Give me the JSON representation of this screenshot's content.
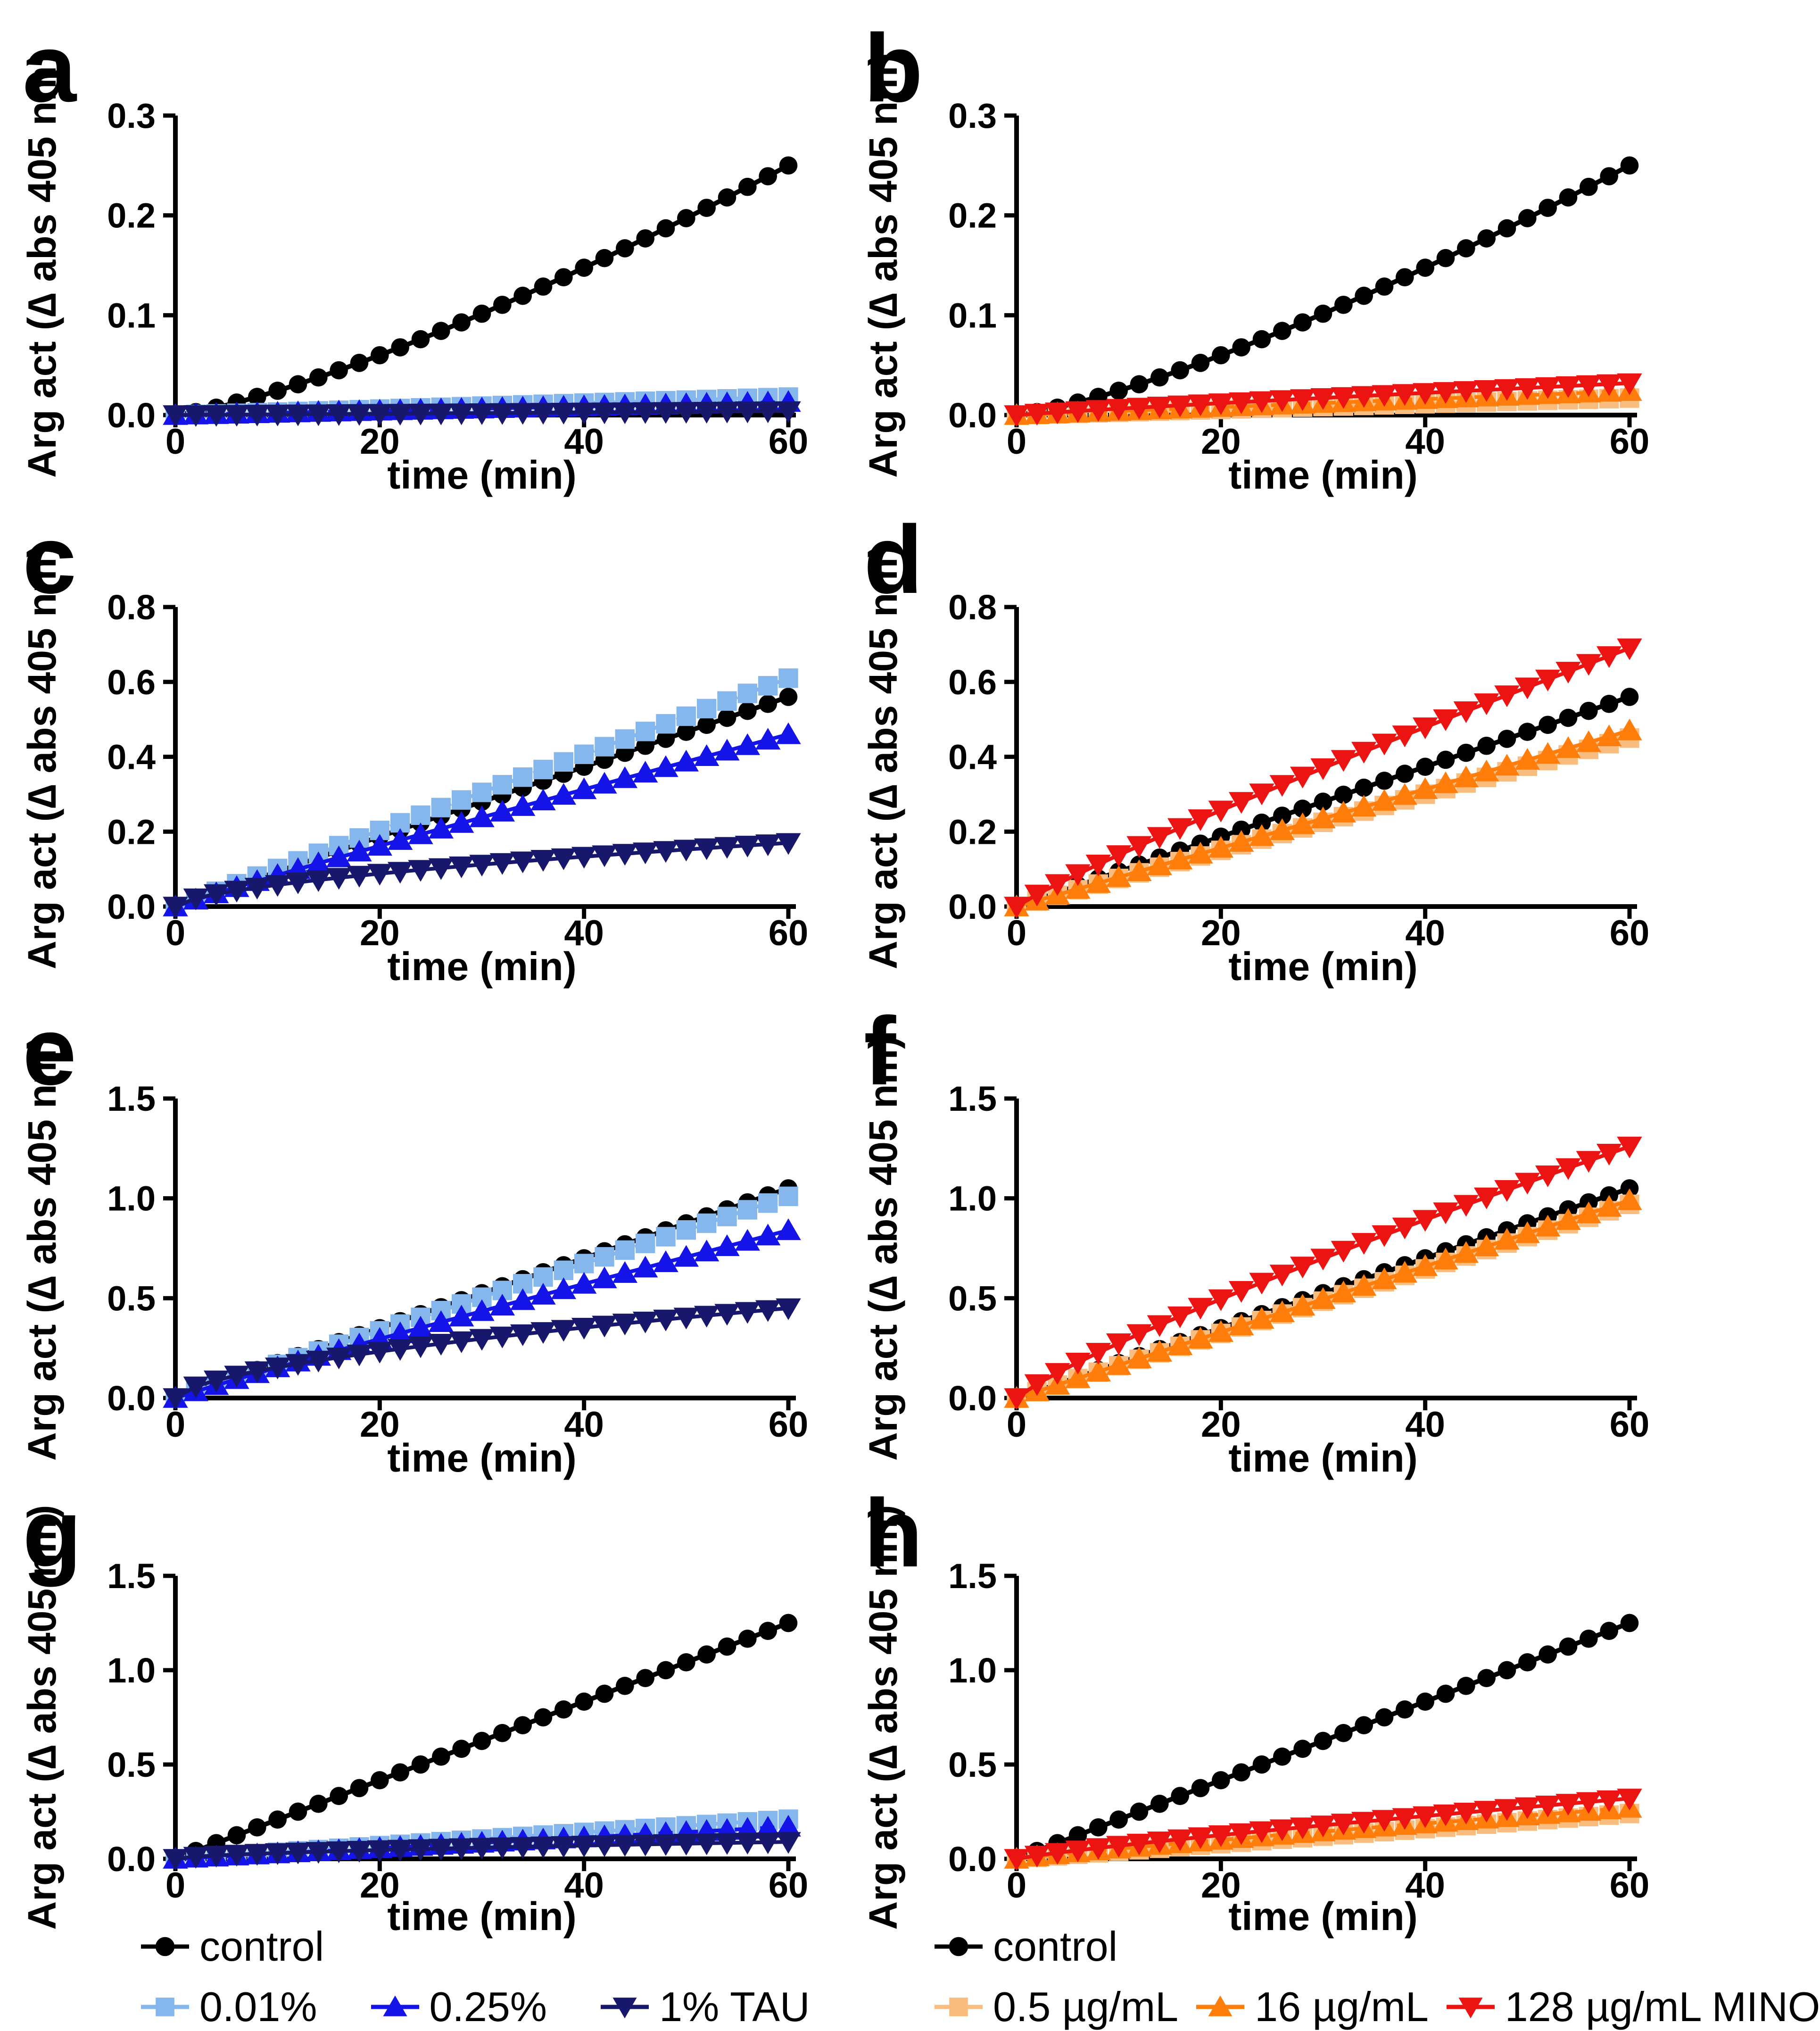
{
  "figure": {
    "background": "#FFFFFF",
    "description": "Arginase activity kinetics, 8 panels a-h"
  },
  "axis": {
    "xlabel": "time (min)",
    "ylabel": "Arg act (∆ abs 405 nm)",
    "xticks": [
      "0",
      "20",
      "40",
      "60"
    ],
    "xlim": [
      0,
      60
    ],
    "x_marker_step_min": 2
  },
  "palette": {
    "black": "#000000",
    "lightblue": "#85B7EC",
    "blue": "#1414E8",
    "navy": "#17176B",
    "lightorange": "#FABD80",
    "orange": "#FF7D0A",
    "red": "#EC1313"
  },
  "chart_data": [
    {
      "type": "line",
      "panel": "a",
      "xlabel": "time (min)",
      "ylabel": "Arg act (∆ abs 405 nm)",
      "x": [
        0,
        10,
        20,
        30,
        40,
        50,
        60
      ],
      "xlim": [
        0,
        60
      ],
      "ylim": [
        0,
        0.3
      ],
      "yticks": [
        "0.0",
        "0.1",
        "0.2",
        "0.3"
      ],
      "legend_position": "bottom-shared",
      "series": [
        {
          "name": "control",
          "color": "black",
          "marker": "circle",
          "line": "solid",
          "y_at_60": 0.25,
          "curve_power": 1.3,
          "values": [
            0,
            0.024,
            0.06,
            0.101,
            0.148,
            0.197,
            0.25
          ]
        },
        {
          "name": "0.01%",
          "color": "lightblue",
          "marker": "square",
          "line": "dashed",
          "y_at_60": 0.018,
          "curve_power": 1.0,
          "values": [
            0,
            0.003,
            0.006,
            0.009,
            0.012,
            0.015,
            0.018
          ]
        },
        {
          "name": "0.25%",
          "color": "blue",
          "marker": "triangle-up",
          "line": "dashed",
          "y_at_60": 0.013,
          "curve_power": 1.0,
          "values": [
            0,
            0.002,
            0.004,
            0.007,
            0.009,
            0.011,
            0.013
          ]
        },
        {
          "name": "1% TAU",
          "color": "navy",
          "marker": "triangle-down",
          "line": "solid",
          "y_at_60": 0.004,
          "curve_power": 1.0,
          "values": [
            0,
            0.001,
            0.001,
            0.002,
            0.003,
            0.003,
            0.004
          ]
        }
      ]
    },
    {
      "type": "line",
      "panel": "b",
      "xlabel": "time (min)",
      "ylabel": "Arg act (∆ abs 405 nm)",
      "x": [
        0,
        10,
        20,
        30,
        40,
        50,
        60
      ],
      "xlim": [
        0,
        60
      ],
      "ylim": [
        0,
        0.3
      ],
      "yticks": [
        "0.0",
        "0.1",
        "0.2",
        "0.3"
      ],
      "legend_position": "bottom-shared",
      "series": [
        {
          "name": "control",
          "color": "black",
          "marker": "circle",
          "line": "solid",
          "y_at_60": 0.25,
          "curve_power": 1.3,
          "values": [
            0,
            0.024,
            0.06,
            0.101,
            0.148,
            0.197,
            0.25
          ]
        },
        {
          "name": "0.5 µg/mL",
          "color": "lightorange",
          "marker": "square",
          "line": "dashed",
          "y_at_60": 0.017,
          "curve_power": 1.0,
          "values": [
            0,
            0.003,
            0.006,
            0.009,
            0.011,
            0.014,
            0.017
          ]
        },
        {
          "name": "16 µg/mL",
          "color": "orange",
          "marker": "triangle-up",
          "line": "dashed",
          "y_at_60": 0.024,
          "curve_power": 1.0,
          "values": [
            0,
            0.004,
            0.008,
            0.012,
            0.016,
            0.02,
            0.024
          ]
        },
        {
          "name": "128 µg/mL MINO",
          "color": "red",
          "marker": "triangle-down",
          "line": "solid",
          "y_at_60": 0.032,
          "curve_power": 0.9,
          "values": [
            0,
            0.006,
            0.012,
            0.017,
            0.022,
            0.027,
            0.032
          ]
        }
      ]
    },
    {
      "type": "line",
      "panel": "c",
      "xlabel": "time (min)",
      "ylabel": "Arg act (∆ abs 405 nm)",
      "x": [
        0,
        10,
        20,
        30,
        40,
        50,
        60
      ],
      "xlim": [
        0,
        60
      ],
      "ylim": [
        0,
        0.8
      ],
      "yticks": [
        "0.0",
        "0.2",
        "0.4",
        "0.6",
        "0.8"
      ],
      "legend_position": "bottom-shared",
      "series": [
        {
          "name": "control",
          "color": "black",
          "marker": "circle",
          "line": "solid",
          "y_at_60": 0.56,
          "curve_power": 1.0,
          "values": [
            0,
            0.093,
            0.187,
            0.28,
            0.373,
            0.467,
            0.56
          ]
        },
        {
          "name": "0.01%",
          "color": "lightblue",
          "marker": "square",
          "line": "dashed",
          "y_at_60": 0.61,
          "curve_power": 1.0,
          "values": [
            0,
            0.102,
            0.203,
            0.305,
            0.407,
            0.508,
            0.61
          ]
        },
        {
          "name": "0.25%",
          "color": "blue",
          "marker": "triangle-up",
          "line": "solid",
          "y_at_60": 0.46,
          "curve_power": 0.95,
          "values": [
            0,
            0.084,
            0.162,
            0.238,
            0.313,
            0.387,
            0.46
          ]
        },
        {
          "name": "1% TAU",
          "color": "navy",
          "marker": "triangle-down",
          "line": "solid",
          "y_at_60": 0.17,
          "curve_power": 0.6,
          "values": [
            0,
            0.058,
            0.088,
            0.112,
            0.133,
            0.152,
            0.17
          ]
        }
      ]
    },
    {
      "type": "line",
      "panel": "d",
      "xlabel": "time (min)",
      "ylabel": "Arg act (∆ abs 405 nm)",
      "x": [
        0,
        10,
        20,
        30,
        40,
        50,
        60
      ],
      "xlim": [
        0,
        60
      ],
      "ylim": [
        0,
        0.8
      ],
      "yticks": [
        "0.0",
        "0.2",
        "0.4",
        "0.6",
        "0.8"
      ],
      "legend_position": "bottom-shared",
      "series": [
        {
          "name": "control",
          "color": "black",
          "marker": "circle",
          "line": "solid",
          "y_at_60": 0.56,
          "curve_power": 1.0,
          "values": [
            0,
            0.093,
            0.187,
            0.28,
            0.373,
            0.467,
            0.56
          ]
        },
        {
          "name": "0.5 µg/mL",
          "color": "lightorange",
          "marker": "square",
          "line": "dashed",
          "y_at_60": 0.45,
          "curve_power": 1.0,
          "values": [
            0,
            0.075,
            0.15,
            0.225,
            0.3,
            0.375,
            0.45
          ]
        },
        {
          "name": "16 µg/mL",
          "color": "orange",
          "marker": "triangle-up",
          "line": "solid",
          "y_at_60": 0.47,
          "curve_power": 1.0,
          "values": [
            0,
            0.078,
            0.157,
            0.235,
            0.313,
            0.392,
            0.47
          ]
        },
        {
          "name": "128 µg/mL MINO",
          "color": "red",
          "marker": "triangle-down",
          "line": "solid",
          "y_at_60": 0.69,
          "curve_power": 0.9,
          "values": [
            0,
            0.137,
            0.257,
            0.37,
            0.479,
            0.586,
            0.69
          ]
        }
      ]
    },
    {
      "type": "line",
      "panel": "e",
      "xlabel": "time (min)",
      "ylabel": "Arg act (∆ abs 405 nm)",
      "x": [
        0,
        10,
        20,
        30,
        40,
        50,
        60
      ],
      "xlim": [
        0,
        60
      ],
      "ylim": [
        0,
        1.5
      ],
      "yticks": [
        "0.0",
        "0.5",
        "1.0",
        "1.5"
      ],
      "legend_position": "bottom-shared",
      "series": [
        {
          "name": "control",
          "color": "black",
          "marker": "circle",
          "line": "solid",
          "y_at_60": 1.05,
          "curve_power": 1.0,
          "values": [
            0,
            0.175,
            0.35,
            0.525,
            0.7,
            0.875,
            1.05
          ]
        },
        {
          "name": "0.01%",
          "color": "lightblue",
          "marker": "square",
          "line": "dashed",
          "y_at_60": 1.01,
          "curve_power": 1.0,
          "values": [
            0,
            0.168,
            0.337,
            0.505,
            0.673,
            0.842,
            1.01
          ]
        },
        {
          "name": "0.25%",
          "color": "blue",
          "marker": "triangle-up",
          "line": "solid",
          "y_at_60": 0.84,
          "curve_power": 0.95,
          "values": [
            0,
            0.153,
            0.296,
            0.435,
            0.571,
            0.706,
            0.84
          ]
        },
        {
          "name": "1% TAU",
          "color": "navy",
          "marker": "triangle-down",
          "line": "solid",
          "y_at_60": 0.45,
          "curve_power": 0.6,
          "values": [
            0,
            0.153,
            0.233,
            0.297,
            0.353,
            0.403,
            0.45
          ]
        }
      ]
    },
    {
      "type": "line",
      "panel": "f",
      "xlabel": "time (min)",
      "ylabel": "Arg act (∆ abs 405 nm)",
      "x": [
        0,
        10,
        20,
        30,
        40,
        50,
        60
      ],
      "xlim": [
        0,
        60
      ],
      "ylim": [
        0,
        1.5
      ],
      "yticks": [
        "0.0",
        "0.5",
        "1.0",
        "1.5"
      ],
      "legend_position": "bottom-shared",
      "series": [
        {
          "name": "control",
          "color": "black",
          "marker": "circle",
          "line": "solid",
          "y_at_60": 1.05,
          "curve_power": 1.0,
          "values": [
            0,
            0.175,
            0.35,
            0.525,
            0.7,
            0.875,
            1.05
          ]
        },
        {
          "name": "0.5 µg/mL",
          "color": "lightorange",
          "marker": "square",
          "line": "dashed",
          "y_at_60": 0.97,
          "curve_power": 1.0,
          "values": [
            0,
            0.162,
            0.323,
            0.485,
            0.647,
            0.808,
            0.97
          ]
        },
        {
          "name": "16 µg/mL",
          "color": "orange",
          "marker": "triangle-up",
          "line": "solid",
          "y_at_60": 0.99,
          "curve_power": 1.0,
          "values": [
            0,
            0.165,
            0.33,
            0.495,
            0.66,
            0.825,
            0.99
          ]
        },
        {
          "name": "128 µg/mL MINO",
          "color": "red",
          "marker": "triangle-down",
          "line": "solid",
          "y_at_60": 1.26,
          "curve_power": 0.85,
          "values": [
            0,
            0.275,
            0.495,
            0.699,
            0.892,
            1.079,
            1.26
          ]
        }
      ]
    },
    {
      "type": "line",
      "panel": "g",
      "xlabel": "time (min)",
      "ylabel": "Arg act (∆ abs 405 nm)",
      "x": [
        0,
        10,
        20,
        30,
        40,
        50,
        60
      ],
      "xlim": [
        0,
        60
      ],
      "ylim": [
        0,
        1.5
      ],
      "yticks": [
        "0.0",
        "0.5",
        "1.0",
        "1.5"
      ],
      "legend_position": "bottom-shared",
      "series": [
        {
          "name": "control",
          "color": "black",
          "marker": "circle",
          "line": "solid",
          "y_at_60": 1.25,
          "curve_power": 1.0,
          "values": [
            0,
            0.208,
            0.417,
            0.625,
            0.833,
            1.042,
            1.25
          ]
        },
        {
          "name": "0.01%",
          "color": "lightblue",
          "marker": "square",
          "line": "dashed",
          "y_at_60": 0.21,
          "curve_power": 1.0,
          "values": [
            0,
            0.035,
            0.07,
            0.105,
            0.14,
            0.175,
            0.21
          ]
        },
        {
          "name": "0.25%",
          "color": "blue",
          "marker": "triangle-up",
          "line": "dashed",
          "y_at_60": 0.17,
          "curve_power": 1.0,
          "values": [
            0,
            0.028,
            0.057,
            0.085,
            0.113,
            0.142,
            0.17
          ]
        },
        {
          "name": "1% TAU",
          "color": "navy",
          "marker": "triangle-down",
          "line": "solid",
          "y_at_60": 0.09,
          "curve_power": 0.6,
          "values": [
            0,
            0.031,
            0.047,
            0.059,
            0.071,
            0.081,
            0.09
          ]
        }
      ]
    },
    {
      "type": "line",
      "panel": "h",
      "xlabel": "time (min)",
      "ylabel": "Arg act (∆ abs 405 nm)",
      "x": [
        0,
        10,
        20,
        30,
        40,
        50,
        60
      ],
      "xlim": [
        0,
        60
      ],
      "ylim": [
        0,
        1.5
      ],
      "yticks": [
        "0.0",
        "0.5",
        "1.0",
        "1.5"
      ],
      "legend_position": "bottom-shared",
      "series": [
        {
          "name": "control",
          "color": "black",
          "marker": "circle",
          "line": "solid",
          "y_at_60": 1.25,
          "curve_power": 1.0,
          "values": [
            0,
            0.208,
            0.417,
            0.625,
            0.833,
            1.042,
            1.25
          ]
        },
        {
          "name": "0.5 µg/mL",
          "color": "lightorange",
          "marker": "square",
          "line": "dashed",
          "y_at_60": 0.24,
          "curve_power": 1.0,
          "values": [
            0,
            0.04,
            0.08,
            0.12,
            0.16,
            0.2,
            0.24
          ]
        },
        {
          "name": "16 µg/mL",
          "color": "orange",
          "marker": "triangle-up",
          "line": "dashed",
          "y_at_60": 0.27,
          "curve_power": 0.9,
          "values": [
            0,
            0.054,
            0.1,
            0.145,
            0.187,
            0.229,
            0.27
          ]
        },
        {
          "name": "128 µg/mL MINO",
          "color": "red",
          "marker": "triangle-down",
          "line": "solid",
          "y_at_60": 0.32,
          "curve_power": 0.85,
          "values": [
            0,
            0.07,
            0.126,
            0.178,
            0.227,
            0.274,
            0.32
          ]
        }
      ]
    }
  ],
  "legends": {
    "left": {
      "rows": [
        [
          {
            "label": "control",
            "color": "black",
            "marker": "circle"
          }
        ],
        [
          {
            "label": "0.01%",
            "color": "lightblue",
            "marker": "square"
          },
          {
            "label": "0.25%",
            "color": "blue",
            "marker": "triangle-up"
          },
          {
            "label": "1% TAU",
            "color": "navy",
            "marker": "triangle-down"
          }
        ]
      ]
    },
    "right": {
      "rows": [
        [
          {
            "label": "control",
            "color": "black",
            "marker": "circle"
          }
        ],
        [
          {
            "label": "0.5 µg/mL",
            "color": "lightorange",
            "marker": "square"
          },
          {
            "label": "16 µg/mL",
            "color": "orange",
            "marker": "triangle-up"
          },
          {
            "label": "128 µg/mL MINO",
            "color": "red",
            "marker": "triangle-down"
          }
        ]
      ]
    }
  }
}
